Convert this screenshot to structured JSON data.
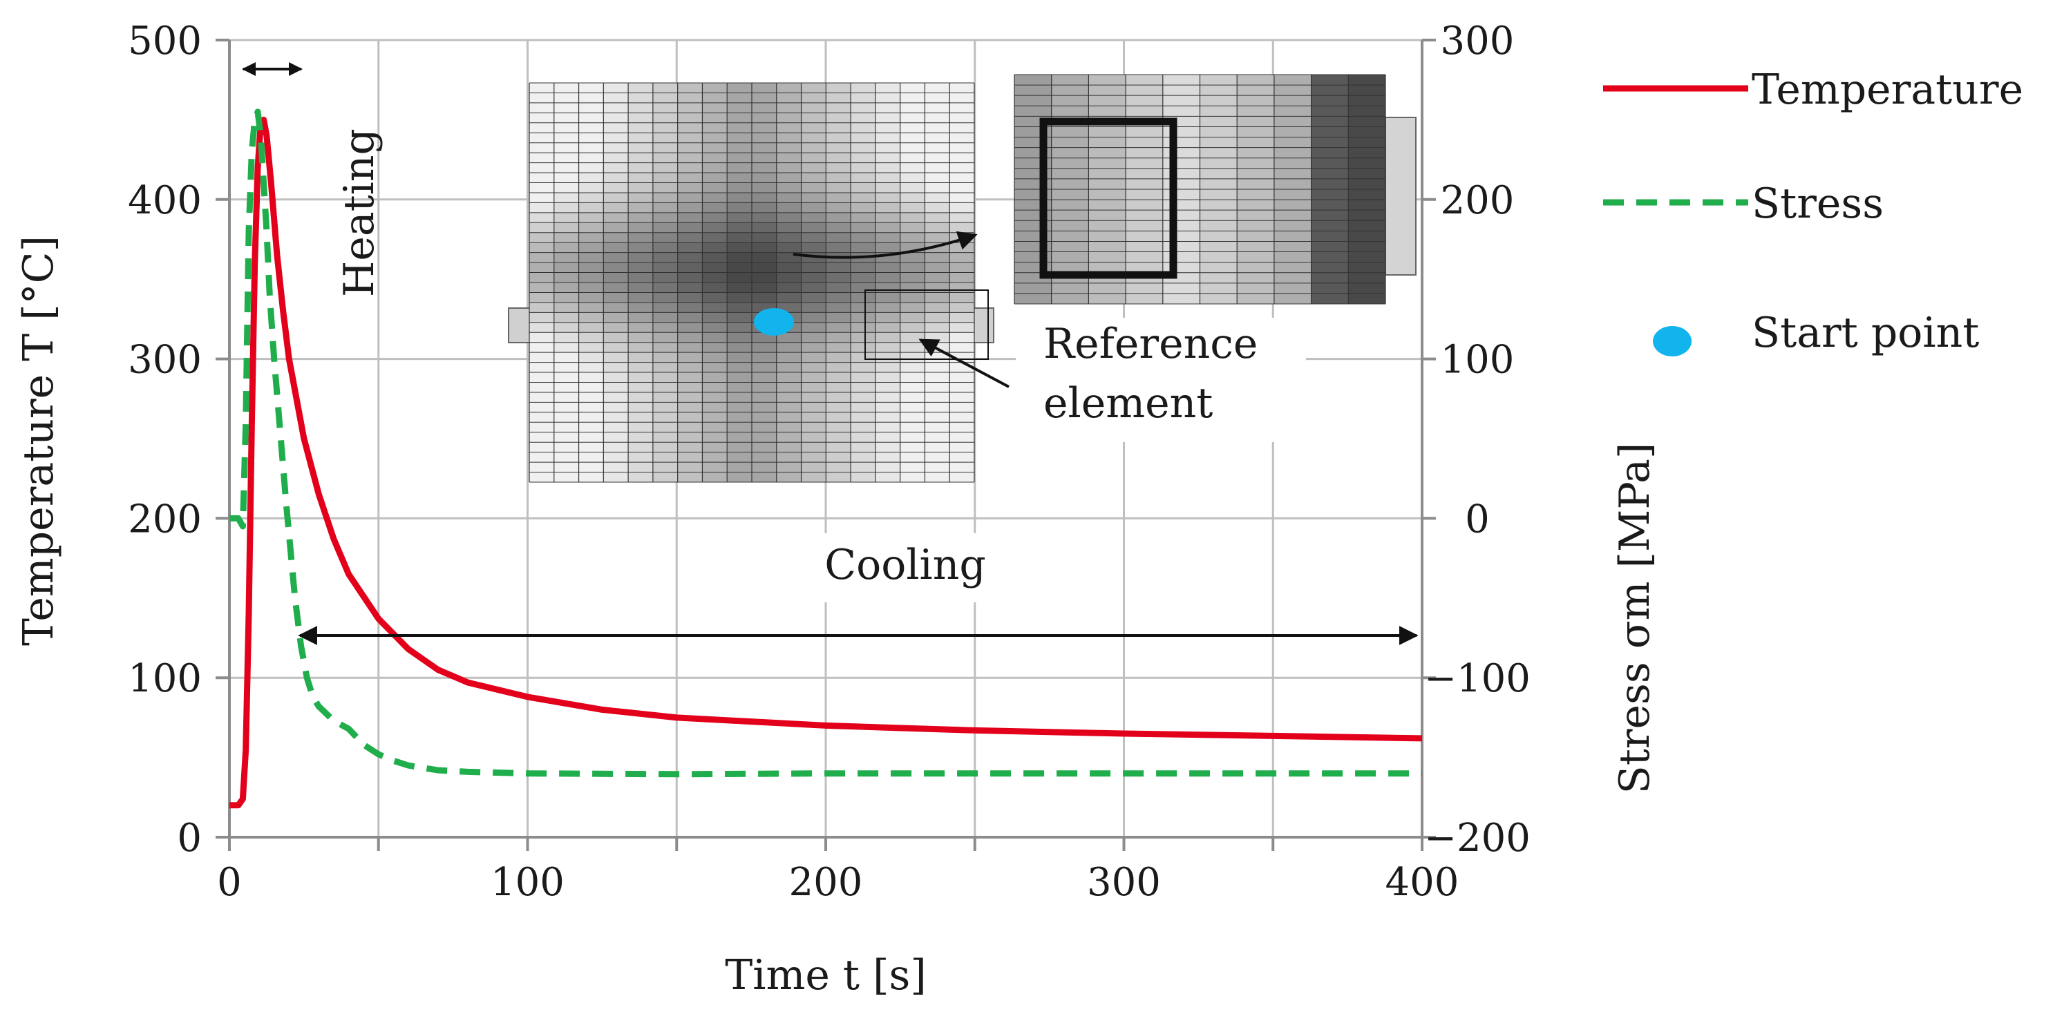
{
  "chart_data": {
    "type": "line",
    "title": "",
    "x": {
      "label": "Time t [s]",
      "range": [
        0,
        400
      ],
      "ticks": [
        0,
        100,
        200,
        300,
        400
      ],
      "minor_gridlines": [
        50,
        150,
        250,
        350
      ],
      "grid": true
    },
    "y_left": {
      "label": "Temperature T [°C]",
      "range": [
        0,
        500
      ],
      "ticks": [
        0,
        100,
        200,
        300,
        400,
        500
      ],
      "grid": true
    },
    "y_right": {
      "label": "Stress σm [MPa]",
      "range": [
        -200,
        300
      ],
      "ticks": [
        -200,
        -100,
        0,
        100,
        200,
        300
      ],
      "tick_labels": [
        "−200",
        "−100",
        "0",
        "100",
        "200",
        "300"
      ]
    },
    "series": [
      {
        "name": "Temperature",
        "axis": "left",
        "color": "#e3001b",
        "style": "solid",
        "points": [
          [
            0,
            20
          ],
          [
            3,
            20
          ],
          [
            4.5,
            24
          ],
          [
            5.5,
            55
          ],
          [
            6.5,
            140
          ],
          [
            7.5,
            260
          ],
          [
            8.5,
            360
          ],
          [
            9.5,
            420
          ],
          [
            10.5,
            447
          ],
          [
            11.5,
            450
          ],
          [
            12.5,
            440
          ],
          [
            14,
            410
          ],
          [
            16,
            365
          ],
          [
            18,
            330
          ],
          [
            20,
            300
          ],
          [
            25,
            250
          ],
          [
            30,
            215
          ],
          [
            35,
            187
          ],
          [
            40,
            165
          ],
          [
            50,
            137
          ],
          [
            60,
            118
          ],
          [
            70,
            105
          ],
          [
            80,
            97
          ],
          [
            100,
            88
          ],
          [
            125,
            80
          ],
          [
            150,
            75
          ],
          [
            200,
            70
          ],
          [
            250,
            67
          ],
          [
            300,
            65
          ],
          [
            350,
            63.5
          ],
          [
            400,
            62
          ]
        ]
      },
      {
        "name": "Stress",
        "axis": "right",
        "color": "#1fae4b",
        "style": "dashed",
        "points": [
          [
            0,
            0
          ],
          [
            3,
            0
          ],
          [
            4.5,
            -5
          ],
          [
            5.5,
            60
          ],
          [
            6.5,
            180
          ],
          [
            7.5,
            230
          ],
          [
            8.5,
            250
          ],
          [
            9.5,
            255
          ],
          [
            10.5,
            240
          ],
          [
            11.5,
            210
          ],
          [
            12.5,
            180
          ],
          [
            13.5,
            140
          ],
          [
            15,
            100
          ],
          [
            17,
            55
          ],
          [
            19,
            10
          ],
          [
            20,
            -10
          ],
          [
            22,
            -50
          ],
          [
            24,
            -80
          ],
          [
            26,
            -100
          ],
          [
            28,
            -112
          ],
          [
            30,
            -118
          ],
          [
            35,
            -127
          ],
          [
            40,
            -132
          ],
          [
            45,
            -142
          ],
          [
            50,
            -148
          ],
          [
            55,
            -152
          ],
          [
            60,
            -155
          ],
          [
            70,
            -158
          ],
          [
            80,
            -159
          ],
          [
            100,
            -160
          ],
          [
            150,
            -160.5
          ],
          [
            200,
            -160
          ],
          [
            300,
            -160
          ],
          [
            400,
            -160
          ]
        ]
      }
    ],
    "legend": {
      "placement": "right",
      "entries": [
        "Temperature",
        "Stress",
        "Start point"
      ]
    },
    "annotations": {
      "heating": "Heating",
      "cooling": "Cooling",
      "reference": [
        "Reference",
        "element"
      ],
      "start_point": "Start point",
      "heating_range_s": [
        2,
        24
      ],
      "cooling_range_s": [
        24,
        398
      ]
    },
    "colors": {
      "temperature": "#e3001b",
      "stress": "#1fae4b",
      "start_point": "#12b4ee",
      "grid": "#bfbfbf",
      "axis": "#8c8c8c"
    }
  }
}
